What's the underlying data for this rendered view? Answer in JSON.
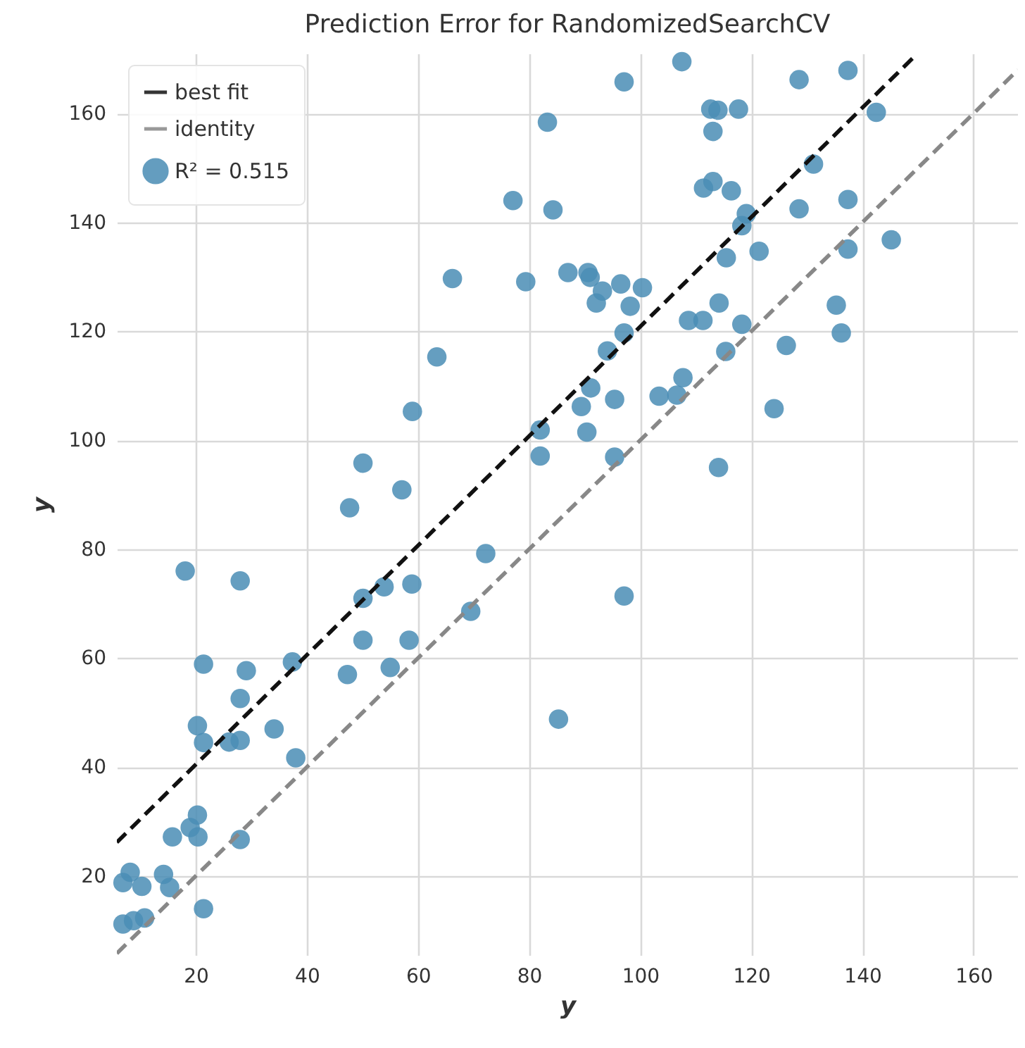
{
  "chart_data": {
    "type": "scatter",
    "title": "Prediction Error for RandomizedSearchCV",
    "xlabel": "y",
    "ylabel": "y",
    "xlim": [
      5.8,
      168
    ],
    "ylim": [
      5.5,
      171
    ],
    "xticks": [
      20,
      40,
      60,
      80,
      100,
      120,
      140,
      160
    ],
    "yticks": [
      20,
      40,
      60,
      80,
      100,
      120,
      140,
      160
    ],
    "grid": true,
    "legend": "top left",
    "series": [
      {
        "type": "line",
        "name": "best fit",
        "color": "#111111",
        "line_style": "dashed",
        "x": [
          5.8,
          149.8
        ],
        "values": [
          26.2,
          170.9
        ]
      },
      {
        "type": "line",
        "name": "identity",
        "color": "#888888",
        "line_style": "dashed",
        "x": [
          5.8,
          168
        ],
        "values": [
          5.8,
          168
        ]
      },
      {
        "name": "R² = 0.515",
        "color": "#4a8db5",
        "marker": "circle",
        "x": [
          107.5,
          97.1,
          128.6,
          137.4,
          83.3,
          112.7,
          114,
          117.7,
          113.1,
          142.5,
          131.2,
          111.4,
          113.1,
          116.4,
          84.3,
          128.6,
          137.4,
          119.1,
          118.3,
          115.5,
          121.4,
          137.4,
          145.2,
          87,
          90.6,
          91,
          93.2,
          92.1,
          96.5,
          100.4,
          98.2,
          114.2,
          135.3,
          108.7,
          111.3,
          118.3,
          136.2,
          97.1,
          94.1,
          115.4,
          126.3,
          91.1,
          89.4,
          95.4,
          103.4,
          106.6,
          107.7,
          82,
          90.4,
          124.1,
          95.4,
          114.1,
          82,
          77.1,
          79.4,
          66.2,
          63.4,
          59,
          50.1,
          57.1,
          47.7,
          18.1,
          28,
          72.2,
          50.1,
          53.9,
          58.9,
          69.5,
          50.1,
          58.4,
          21.4,
          29.1,
          37.4,
          47.3,
          55,
          28,
          20.3,
          21.4,
          26,
          28,
          34.1,
          38,
          85.3,
          97.1,
          20.3,
          19,
          20.4,
          15.8,
          28,
          8.2,
          6.9,
          10.3,
          14.2,
          15.3,
          21.4,
          6.9,
          8.8,
          10.8
        ],
        "values": [
          169.5,
          165.8,
          166.2,
          167.9,
          158.4,
          160.8,
          160.6,
          160.8,
          156.7,
          160.2,
          150.7,
          146.3,
          147.5,
          145.8,
          142.3,
          142.5,
          144.2,
          141.6,
          139.4,
          133.5,
          134.7,
          135.1,
          136.8,
          130.8,
          130.8,
          129.9,
          127.4,
          125.2,
          128.7,
          128,
          124.6,
          125.2,
          124.8,
          122,
          122,
          121.3,
          119.7,
          119.7,
          116.4,
          116.3,
          117.4,
          109.6,
          106.2,
          107.5,
          108.1,
          108.3,
          111.5,
          101.9,
          101.5,
          105.8,
          96.9,
          95,
          97.1,
          144,
          129.1,
          129.7,
          115.3,
          105.3,
          95.8,
          90.9,
          87.6,
          76,
          74.2,
          79.2,
          71,
          73.1,
          73.6,
          68.6,
          63.3,
          63.3,
          58.9,
          57.7,
          59.3,
          57,
          58.3,
          52.6,
          47.6,
          44.5,
          44.6,
          44.9,
          47,
          41.7,
          48.8,
          71.4,
          31.2,
          28.9,
          27.2,
          27.2,
          26.7,
          20.7,
          18.8,
          18.1,
          20.3,
          17.9,
          14,
          11.2,
          11.8,
          12.3
        ]
      }
    ]
  }
}
